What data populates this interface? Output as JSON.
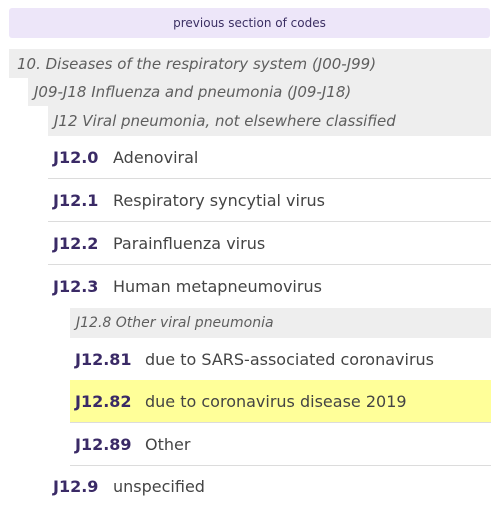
{
  "nav": {
    "previous_label": "previous section of codes"
  },
  "breadcrumbs": [
    "10. Diseases of the respiratory system (J00-J99)",
    "J09-J18 Influenza and pneumonia (J09-J18)",
    "J12 Viral pneumonia, not elsewhere classified"
  ],
  "codes": [
    {
      "code": "J12.0",
      "desc": "Adenoviral"
    },
    {
      "code": "J12.1",
      "desc": "Respiratory syncytial virus"
    },
    {
      "code": "J12.2",
      "desc": "Parainfluenza virus"
    },
    {
      "code": "J12.3",
      "desc": "Human metapneumovirus"
    }
  ],
  "subgroup": {
    "title": "J12.8 Other viral pneumonia",
    "codes": [
      {
        "code": "J12.81",
        "desc": "due to SARS-associated coronavirus"
      },
      {
        "code": "J12.82",
        "desc": "due to coronavirus disease 2019",
        "highlighted": true
      },
      {
        "code": "J12.89",
        "desc": "Other"
      }
    ]
  },
  "final_code": {
    "code": "J12.9",
    "desc": "unspecified"
  },
  "colors": {
    "highlight": "#ffff99",
    "code_text": "#3a2a66",
    "nav_button_bg": "#ede6f9"
  }
}
